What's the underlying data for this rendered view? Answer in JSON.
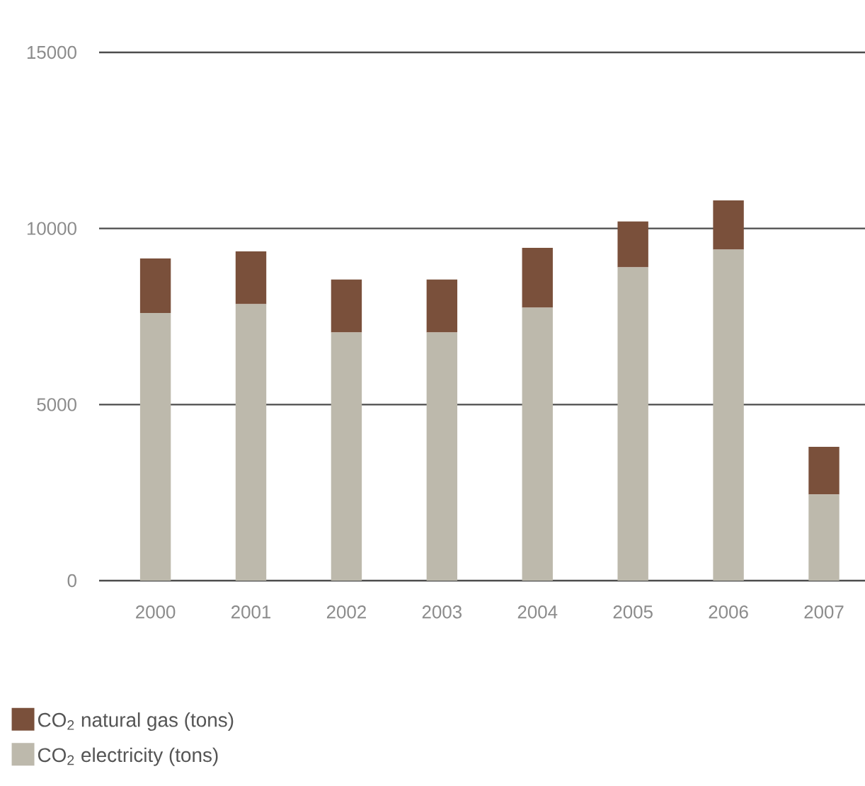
{
  "chart_data": {
    "type": "bar",
    "stacked": true,
    "categories": [
      "2000",
      "2001",
      "2002",
      "2003",
      "2004",
      "2005",
      "2006",
      "2007"
    ],
    "series": [
      {
        "name": "CO$_{2}$ electricity (tons)",
        "color": "#bdb9ac",
        "values": [
          7600,
          7850,
          7050,
          7050,
          7750,
          8900,
          9400,
          2450
        ]
      },
      {
        "name": "CO$_{2}$ natural gas (tons)",
        "color": "#7a503b",
        "values": [
          1550,
          1500,
          1500,
          1500,
          1700,
          1300,
          1400,
          1350
        ]
      }
    ],
    "ylim": [
      0,
      15000
    ],
    "yticks": [
      0,
      5000,
      10000,
      15000
    ],
    "grid": "y",
    "legend": "bottom left"
  }
}
